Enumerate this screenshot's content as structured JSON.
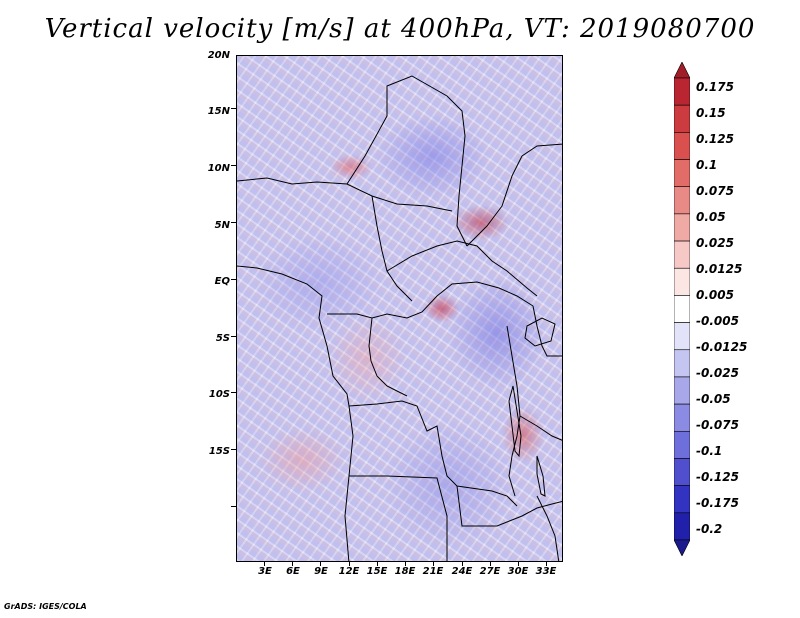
{
  "title": "Vertical velocity [m/s] at 400hPa, VT: 2019080700",
  "map": {
    "variable": "Vertical velocity",
    "units": "m/s",
    "level": "400hPa",
    "valid_time": "2019080700",
    "lat_labels": [
      "20N",
      "15N",
      "10N",
      "5N",
      "EQ",
      "5S",
      "10S",
      "15S"
    ],
    "lon_labels": [
      "3E",
      "6E",
      "9E",
      "12E",
      "15E",
      "18E",
      "21E",
      "24E",
      "27E",
      "30E",
      "33E"
    ]
  },
  "colorbar": {
    "labels": [
      "0.175",
      "0.15",
      "0.125",
      "0.1",
      "0.075",
      "0.05",
      "0.025",
      "0.0125",
      "0.005",
      "-0.005",
      "-0.0125",
      "-0.025",
      "-0.05",
      "-0.075",
      "-0.1",
      "-0.125",
      "-0.175",
      "-0.2"
    ],
    "colors": [
      "#a11d2a",
      "#b92632",
      "#cc3b3f",
      "#d9504f",
      "#e26c68",
      "#e88a86",
      "#f0aaa6",
      "#f6c9c6",
      "#fbe6e4",
      "#ffffff",
      "#e2e2f8",
      "#c5c5f1",
      "#a7a7ea",
      "#8b8be3",
      "#6f6fdb",
      "#5050cf",
      "#3333c2",
      "#2020aa",
      "#1a1a8e"
    ]
  },
  "credit": "GrADS: IGES/COLA"
}
